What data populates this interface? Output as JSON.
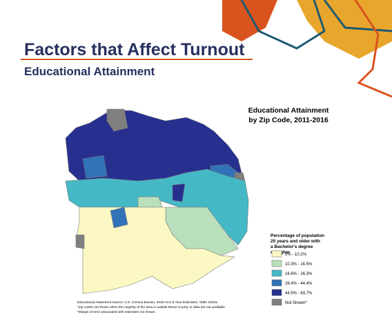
{
  "header": {
    "title": "Factors that Affect Turnout",
    "subtitle": "Educational Attainment"
  },
  "map": {
    "title_lines": [
      "Educational Attainment",
      "by Zip Code, 2011-2016"
    ],
    "legend": {
      "title_lines": [
        "Percentage of population",
        "25 years and older with",
        "a Bachelor's degree",
        "or higher"
      ],
      "items": [
        {
          "label": "0% - 10.2%",
          "color": "#fbf8c3"
        },
        {
          "label": "10.3% - 16.5%",
          "color": "#b9dfbd"
        },
        {
          "label": "16.6% - 26.3%",
          "color": "#45b8c6"
        },
        {
          "label": "26.4% - 44.4%",
          "color": "#3173b8"
        },
        {
          "label": "44.5% - 63.7%",
          "color": "#27308f"
        },
        {
          "label": "Not Shown*",
          "color": "#7f7f7f"
        }
      ]
    }
  },
  "notes": [
    "Educational Attainment Source: U.S. Census Bureau, 2016 ACS 5-Year Estimates, Table S1501.",
    "*Zip codes not shown when the majority of the area is outside Bexar County or data are not available.",
    "*Margin of error associated with estimates not shown."
  ]
}
